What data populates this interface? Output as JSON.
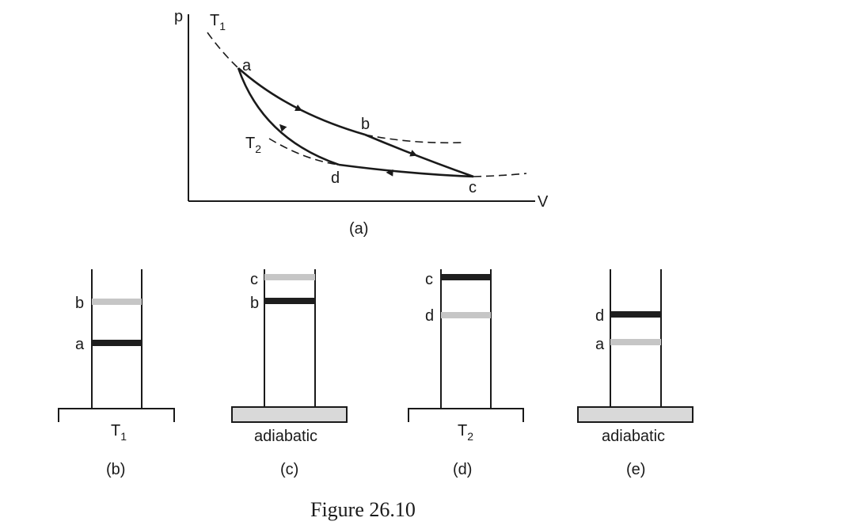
{
  "pv_diagram": {
    "axis_y": "p",
    "axis_x": "V",
    "isotherm_hot": "T",
    "isotherm_hot_sub": "1",
    "isotherm_cold": "T",
    "isotherm_cold_sub": "2",
    "points": {
      "a": "a",
      "b": "b",
      "c": "c",
      "d": "d"
    },
    "caption": "(a)"
  },
  "cylinders": [
    {
      "caption": "(b)",
      "base": "reservoir",
      "base_label": "T",
      "base_label_sub": "1",
      "pistons": [
        {
          "label": "b",
          "state": "final"
        },
        {
          "label": "a",
          "state": "initial"
        }
      ]
    },
    {
      "caption": "(c)",
      "base": "insulated",
      "base_label": "adiabatic",
      "pistons": [
        {
          "label": "c",
          "state": "final"
        },
        {
          "label": "b",
          "state": "initial"
        }
      ]
    },
    {
      "caption": "(d)",
      "base": "reservoir",
      "base_label": "T",
      "base_label_sub": "2",
      "pistons": [
        {
          "label": "c",
          "state": "initial"
        },
        {
          "label": "d",
          "state": "final"
        }
      ]
    },
    {
      "caption": "(e)",
      "base": "insulated",
      "base_label": "adiabatic",
      "pistons": [
        {
          "label": "d",
          "state": "initial"
        },
        {
          "label": "a",
          "state": "final"
        }
      ]
    }
  ],
  "colors": {
    "initial_piston": "#1e1e1e",
    "final_piston": "#c6c6c6",
    "insulator_fill": "#d9d9d9",
    "line": "#1a1a1a"
  },
  "figure_caption": "Figure 26.10"
}
